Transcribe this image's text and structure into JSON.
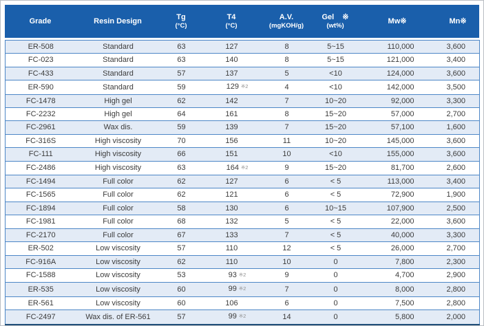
{
  "colors": {
    "header_bg": "#1a5fab",
    "header_text": "#ffffff",
    "row_alt_bg": "#e3ebf6",
    "row_bg": "#ffffff",
    "grid_line": "#4c86c6",
    "table_bottom_border": "#1f4e79",
    "body_text": "#3b3b3b",
    "footnote_text": "#8f8f8f"
  },
  "table": {
    "columns": [
      {
        "id": "grade",
        "label": "Grade",
        "unit": ""
      },
      {
        "id": "resin_design",
        "label": "Resin Design",
        "unit": ""
      },
      {
        "id": "tg",
        "label": "Tg",
        "unit": "(°C)"
      },
      {
        "id": "t4",
        "label": "T4",
        "unit": "(°C)"
      },
      {
        "id": "av",
        "label": "A.V.",
        "unit": "(mgKOH/g)"
      },
      {
        "id": "gel",
        "label": "Gel ※",
        "unit": "(wt%)"
      },
      {
        "id": "mw",
        "label": "Mw※",
        "unit": ""
      },
      {
        "id": "mn",
        "label": "Mn※",
        "unit": ""
      }
    ],
    "footnote_mark": "※2",
    "rows": [
      {
        "grade": "ER-508",
        "resin_design": "Standard",
        "tg": "63",
        "t4": "127",
        "t4_note": "",
        "av": "8",
        "gel": "5~15",
        "mw": "110,000",
        "mn": "3,600"
      },
      {
        "grade": "FC-023",
        "resin_design": "Standard",
        "tg": "63",
        "t4": "140",
        "t4_note": "",
        "av": "8",
        "gel": "5~15",
        "mw": "121,000",
        "mn": "3,400"
      },
      {
        "grade": "FC-433",
        "resin_design": "Standard",
        "tg": "57",
        "t4": "137",
        "t4_note": "",
        "av": "5",
        "gel": "<10",
        "mw": "124,000",
        "mn": "3,600"
      },
      {
        "grade": "ER-590",
        "resin_design": "Standard",
        "tg": "59",
        "t4": "129",
        "t4_note": "※2",
        "av": "4",
        "gel": "<10",
        "mw": "142,000",
        "mn": "3,500"
      },
      {
        "grade": "FC-1478",
        "resin_design": "High gel",
        "tg": "62",
        "t4": "142",
        "t4_note": "",
        "av": "7",
        "gel": "10~20",
        "mw": "92,000",
        "mn": "3,300"
      },
      {
        "grade": "FC-2232",
        "resin_design": "High gel",
        "tg": "64",
        "t4": "161",
        "t4_note": "",
        "av": "8",
        "gel": "15~20",
        "mw": "57,000",
        "mn": "2,700"
      },
      {
        "grade": "FC-2961",
        "resin_design": "Wax dis.",
        "tg": "59",
        "t4": "139",
        "t4_note": "",
        "av": "7",
        "gel": "15~20",
        "mw": "57,100",
        "mn": "1,600"
      },
      {
        "grade": "FC-316S",
        "resin_design": "High viscosity",
        "tg": "70",
        "t4": "156",
        "t4_note": "",
        "av": "11",
        "gel": "10~20",
        "mw": "145,000",
        "mn": "3,600"
      },
      {
        "grade": "FC-111",
        "resin_design": "High viscosity",
        "tg": "66",
        "t4": "151",
        "t4_note": "",
        "av": "10",
        "gel": "<10",
        "mw": "155,000",
        "mn": "3,600"
      },
      {
        "grade": "FC-2486",
        "resin_design": "High viscosity",
        "tg": "63",
        "t4": "164",
        "t4_note": "※2",
        "av": "9",
        "gel": "15~20",
        "mw": "81,700",
        "mn": "2,600"
      },
      {
        "grade": "FC-1494",
        "resin_design": "Full color",
        "tg": "62",
        "t4": "127",
        "t4_note": "",
        "av": "6",
        "gel": "< 5",
        "mw": "113,000",
        "mn": "3,400"
      },
      {
        "grade": "FC-1565",
        "resin_design": "Full color",
        "tg": "62",
        "t4": "121",
        "t4_note": "",
        "av": "6",
        "gel": "< 5",
        "mw": "72,900",
        "mn": "1,900"
      },
      {
        "grade": "FC-1894",
        "resin_design": "Full color",
        "tg": "58",
        "t4": "130",
        "t4_note": "",
        "av": "6",
        "gel": "10~15",
        "mw": "107,900",
        "mn": "2,500"
      },
      {
        "grade": "FC-1981",
        "resin_design": "Full color",
        "tg": "68",
        "t4": "132",
        "t4_note": "",
        "av": "5",
        "gel": "< 5",
        "mw": "22,000",
        "mn": "3,600"
      },
      {
        "grade": "FC-2170",
        "resin_design": "Full color",
        "tg": "67",
        "t4": "133",
        "t4_note": "",
        "av": "7",
        "gel": "< 5",
        "mw": "40,000",
        "mn": "3,300"
      },
      {
        "grade": "ER-502",
        "resin_design": "Low viscosity",
        "tg": "57",
        "t4": "110",
        "t4_note": "",
        "av": "12",
        "gel": "< 5",
        "mw": "26,000",
        "mn": "2,700"
      },
      {
        "grade": "FC-916A",
        "resin_design": "Low viscosity",
        "tg": "62",
        "t4": "110",
        "t4_note": "",
        "av": "10",
        "gel": "0",
        "mw": "7,800",
        "mn": "2,300"
      },
      {
        "grade": "FC-1588",
        "resin_design": "Low viscosity",
        "tg": "53",
        "t4": "93",
        "t4_note": "※2",
        "av": "9",
        "gel": "0",
        "mw": "4,700",
        "mn": "2,900"
      },
      {
        "grade": "ER-535",
        "resin_design": "Low viscosity",
        "tg": "60",
        "t4": "99",
        "t4_note": "※2",
        "av": "7",
        "gel": "0",
        "mw": "8,000",
        "mn": "2,800"
      },
      {
        "grade": "ER-561",
        "resin_design": "Low viscosity",
        "tg": "60",
        "t4": "106",
        "t4_note": "",
        "av": "6",
        "gel": "0",
        "mw": "7,500",
        "mn": "2,800"
      },
      {
        "grade": "FC-2497",
        "resin_design": "Wax dis. of ER-561",
        "tg": "57",
        "t4": "99",
        "t4_note": "※2",
        "av": "14",
        "gel": "0",
        "mw": "5,800",
        "mn": "2,000"
      }
    ]
  }
}
